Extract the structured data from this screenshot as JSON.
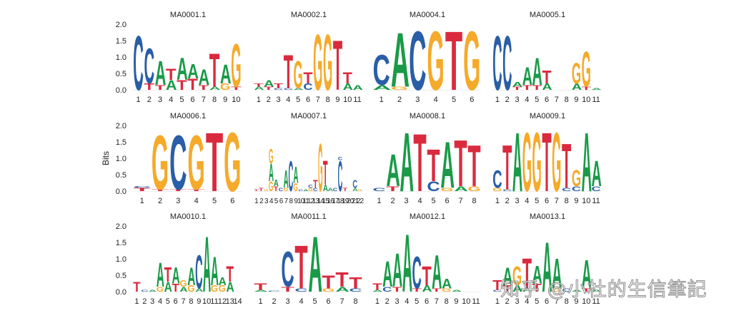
{
  "figure": {
    "ylabel": "Bits",
    "watermark": "知乎 @小杜的生信筆記",
    "colors": {
      "A": "#1a9a48",
      "C": "#2a5ea6",
      "G": "#f5aa2a",
      "T": "#da2a3e"
    }
  },
  "chart_data": {
    "type": "sequence_logo",
    "title": "",
    "ylabel": "Bits",
    "ylim": [
      0,
      2.0
    ],
    "yticks": [
      0.0,
      0.5,
      1.0,
      1.5,
      2.0
    ],
    "layout": {
      "rows": 3,
      "cols": 4,
      "ylabel_only_first_col": true,
      "yticks_only_first_col": true
    },
    "panels": [
      {
        "title": "MA0001.1",
        "positions": [
          [
            [
              "C",
              1.7
            ]
          ],
          [
            [
              "T",
              0.2
            ],
            [
              "C",
              1.1
            ]
          ],
          [
            [
              "T",
              0.15
            ],
            [
              "A",
              0.75
            ]
          ],
          [
            [
              "A",
              0.3
            ],
            [
              "T",
              0.35
            ]
          ],
          [
            [
              "T",
              0.3
            ],
            [
              "A",
              0.7
            ]
          ],
          [
            [
              "T",
              0.35
            ],
            [
              "A",
              0.45
            ]
          ],
          [
            [
              "T",
              0.15
            ],
            [
              "A",
              0.5
            ]
          ],
          [
            [
              "A",
              0.1
            ],
            [
              "T",
              1.05
            ]
          ],
          [
            [
              "G",
              0.2
            ],
            [
              "A",
              0.6
            ]
          ],
          [
            [
              "T",
              0.1
            ],
            [
              "G",
              1.35
            ]
          ]
        ]
      },
      {
        "title": "MA0002.1",
        "positions": [
          [
            [
              "A",
              0.1
            ],
            [
              "T",
              0.1
            ]
          ],
          [
            [
              "T",
              0.1
            ],
            [
              "A",
              0.2
            ]
          ],
          [
            [
              "C",
              0.05
            ],
            [
              "T",
              0.15
            ]
          ],
          [
            [
              "C",
              0.05
            ],
            [
              "T",
              1.05
            ]
          ],
          [
            [
              "A",
              0.05
            ],
            [
              "G",
              0.85
            ]
          ],
          [
            [
              "C",
              0.2
            ],
            [
              "T",
              0.35
            ]
          ],
          [
            [
              "G",
              1.75
            ]
          ],
          [
            [
              "G",
              1.75
            ]
          ],
          [
            [
              "T",
              1.55
            ]
          ],
          [
            [
              "A",
              0.2
            ],
            [
              "T",
              0.35
            ]
          ],
          [
            [
              "A",
              0.15
            ]
          ]
        ]
      },
      {
        "title": "MA0004.1",
        "positions": [
          [
            [
              "A",
              0.15
            ],
            [
              "C",
              0.95
            ]
          ],
          [
            [
              "G",
              0.1
            ],
            [
              "A",
              1.7
            ]
          ],
          [
            [
              "C",
              1.85
            ]
          ],
          [
            [
              "G",
              1.85
            ]
          ],
          [
            [
              "T",
              1.85
            ]
          ],
          [
            [
              "G",
              1.85
            ]
          ]
        ]
      },
      {
        "title": "MA0005.1",
        "positions": [
          [
            [
              "C",
              1.7
            ]
          ],
          [
            [
              "C",
              1.7
            ]
          ],
          [
            [
              "T",
              0.1
            ],
            [
              "A",
              0.15
            ]
          ],
          [
            [
              "T",
              0.15
            ],
            [
              "A",
              0.55
            ]
          ],
          [
            [
              "T",
              0.15
            ],
            [
              "A",
              0.85
            ]
          ],
          [
            [
              "A",
              0.2
            ],
            [
              "T",
              0.4
            ]
          ],
          [],
          [],
          [
            [
              "A",
              0.2
            ],
            [
              "G",
              0.65
            ]
          ],
          [
            [
              "T",
              0.1
            ],
            [
              "G",
              1.1
            ]
          ],
          [
            [
              "A",
              0.05
            ]
          ]
        ]
      },
      {
        "title": "MA0006.1",
        "positions": [
          [
            [
              "T",
              0.1
            ],
            [
              "C",
              0.05
            ]
          ],
          [
            [
              "T",
              0.05
            ],
            [
              "G",
              1.7
            ]
          ],
          [
            [
              "T",
              0.05
            ],
            [
              "C",
              1.7
            ]
          ],
          [
            [
              "T",
              0.05
            ],
            [
              "G",
              1.7
            ]
          ],
          [
            [
              "T",
              1.85
            ]
          ],
          [
            [
              "G",
              1.85
            ]
          ]
        ]
      },
      {
        "title": "MA0007.1",
        "positions": [
          [
            [
              "T",
              0.05
            ]
          ],
          [
            [
              "T",
              0.1
            ]
          ],
          [
            [
              "G",
              0.05
            ]
          ],
          [
            [
              "G",
              0.3
            ],
            [
              "A",
              0.55
            ],
            [
              "G",
              0.45
            ]
          ],
          [
            [
              "T",
              0.15
            ],
            [
              "A",
              0.2
            ]
          ],
          [
            [
              "C",
              0.1
            ]
          ],
          [
            [
              "G",
              0.1
            ],
            [
              "A",
              0.55
            ]
          ],
          [
            [
              "C",
              0.95
            ]
          ],
          [
            [
              "G",
              0.25
            ],
            [
              "A",
              0.5
            ]
          ],
          [
            [
              "C",
              0.05
            ]
          ],
          [
            [
              "A",
              0.05
            ]
          ],
          [
            [
              "G",
              0.1
            ],
            [
              "C",
              0.1
            ]
          ],
          [
            [
              "C",
              0.1
            ],
            [
              "T",
              0.25
            ]
          ],
          [
            [
              "G",
              1.5
            ]
          ],
          [
            [
              "A",
              0.2
            ],
            [
              "T",
              0.75
            ]
          ],
          [
            [
              "A",
              0.1
            ]
          ],
          [
            [
              "C",
              0.1
            ]
          ],
          [
            [
              "C",
              0.95
            ],
            [
              "C",
              0.1
            ]
          ],
          [
            [
              "T",
              0.1
            ]
          ],
          [],
          [
            [
              "A",
              0.1
            ],
            [
              "C",
              0.25
            ]
          ],
          [
            [
              "G",
              0.05
            ]
          ]
        ]
      },
      {
        "title": "MA0008.1",
        "positions": [
          [
            [
              "C",
              0.1
            ]
          ],
          [
            [
              "T",
              0.15
            ],
            [
              "A",
              1.0
            ]
          ],
          [
            [
              "A",
              1.85
            ]
          ],
          [
            [
              "T",
              1.8
            ]
          ],
          [
            [
              "C",
              0.3
            ],
            [
              "T",
              1.0
            ]
          ],
          [
            [
              "G",
              0.1
            ],
            [
              "A",
              1.45
            ]
          ],
          [
            [
              "A",
              0.15
            ],
            [
              "T",
              1.45
            ]
          ],
          [
            [
              "G",
              0.15
            ],
            [
              "T",
              1.3
            ]
          ]
        ]
      },
      {
        "title": "MA0009.1",
        "positions": [
          [
            [
              "G",
              0.1
            ],
            [
              "C",
              0.55
            ]
          ],
          [
            [
              "C",
              0.05
            ],
            [
              "T",
              1.4
            ]
          ],
          [
            [
              "A",
              1.85
            ]
          ],
          [
            [
              "G",
              1.85
            ]
          ],
          [
            [
              "G",
              1.85
            ]
          ],
          [
            [
              "T",
              1.85
            ]
          ],
          [
            [
              "G",
              1.85
            ]
          ],
          [
            [
              "C",
              0.1
            ],
            [
              "T",
              1.4
            ]
          ],
          [
            [
              "C",
              0.15
            ],
            [
              "G",
              0.5
            ]
          ],
          [
            [
              "A",
              1.85
            ]
          ],
          [
            [
              "C",
              0.15
            ],
            [
              "A",
              0.8
            ]
          ]
        ]
      },
      {
        "title": "MA0010.1",
        "positions": [
          [
            [
              "T",
              0.3
            ]
          ],
          [
            [
              "C",
              0.05
            ]
          ],
          [
            [
              "A",
              0.05
            ]
          ],
          [
            [
              "G",
              0.15
            ],
            [
              "A",
              0.75
            ]
          ],
          [
            [
              "A",
              0.3
            ],
            [
              "T",
              0.45
            ]
          ],
          [
            [
              "T",
              0.25
            ],
            [
              "A",
              0.5
            ]
          ],
          [
            [
              "A",
              0.15
            ],
            [
              "G",
              0.2
            ]
          ],
          [
            [
              "G",
              0.2
            ],
            [
              "A",
              0.55
            ]
          ],
          [
            [
              "A",
              0.1
            ],
            [
              "C",
              1.05
            ]
          ],
          [
            [
              "A",
              1.75
            ]
          ],
          [
            [
              "G",
              0.2
            ],
            [
              "A",
              0.9
            ]
          ],
          [
            [
              "G",
              0.2
            ],
            [
              "A",
              0.25
            ]
          ],
          [
            [
              "A",
              0.3
            ],
            [
              "T",
              0.5
            ]
          ],
          []
        ]
      },
      {
        "title": "MA0011.1",
        "positions": [
          [
            [
              "A",
              0.05
            ],
            [
              "T",
              0.2
            ]
          ],
          [
            [
              "C",
              0.02
            ]
          ],
          [
            [
              "T",
              0.15
            ],
            [
              "C",
              1.1
            ]
          ],
          [
            [
              "C",
              0.1
            ],
            [
              "T",
              1.35
            ]
          ],
          [
            [
              "A",
              1.75
            ]
          ],
          [
            [
              "G",
              0.1
            ],
            [
              "T",
              0.4
            ]
          ],
          [
            [
              "A",
              0.15
            ],
            [
              "T",
              0.45
            ]
          ],
          [
            [
              "C",
              0.1
            ],
            [
              "T",
              0.35
            ]
          ]
        ]
      },
      {
        "title": "MA0012.1",
        "positions": [
          [
            [
              "A",
              0.05
            ],
            [
              "T",
              0.2
            ]
          ],
          [
            [
              "C",
              0.15
            ],
            [
              "A",
              0.8
            ]
          ],
          [
            [
              "T",
              0.15
            ],
            [
              "A",
              1.05
            ]
          ],
          [
            [
              "A",
              1.8
            ]
          ],
          [
            [
              "T",
              0.1
            ],
            [
              "C",
              1.0
            ]
          ],
          [
            [
              "A",
              0.2
            ],
            [
              "T",
              0.6
            ]
          ],
          [
            [
              "T",
              0.1
            ],
            [
              "A",
              1.05
            ]
          ],
          [
            [
              "G",
              0.1
            ],
            [
              "A",
              0.3
            ]
          ],
          [
            [
              "A",
              0.05
            ]
          ],
          [],
          []
        ]
      },
      {
        "title": "MA0013.1",
        "positions": [
          [
            [
              "C",
              0.05
            ],
            [
              "T",
              0.3
            ]
          ],
          [
            [
              "T",
              0.2
            ],
            [
              "A",
              0.55
            ]
          ],
          [
            [
              "A",
              0.2
            ],
            [
              "G",
              0.6
            ]
          ],
          [
            [
              "A",
              0.1
            ],
            [
              "T",
              0.95
            ]
          ],
          [
            [
              "T",
              0.25
            ],
            [
              "A",
              0.55
            ]
          ],
          [
            [
              "A",
              1.55
            ]
          ],
          [
            [
              "G",
              0.1
            ],
            [
              "A",
              0.95
            ]
          ],
          [
            [
              "C",
              0.1
            ]
          ],
          [
            [
              "A",
              0.05
            ]
          ],
          [
            [
              "T",
              0.1
            ],
            [
              "A",
              0.9
            ]
          ],
          [
            [
              "A",
              0.05
            ]
          ]
        ]
      }
    ]
  }
}
